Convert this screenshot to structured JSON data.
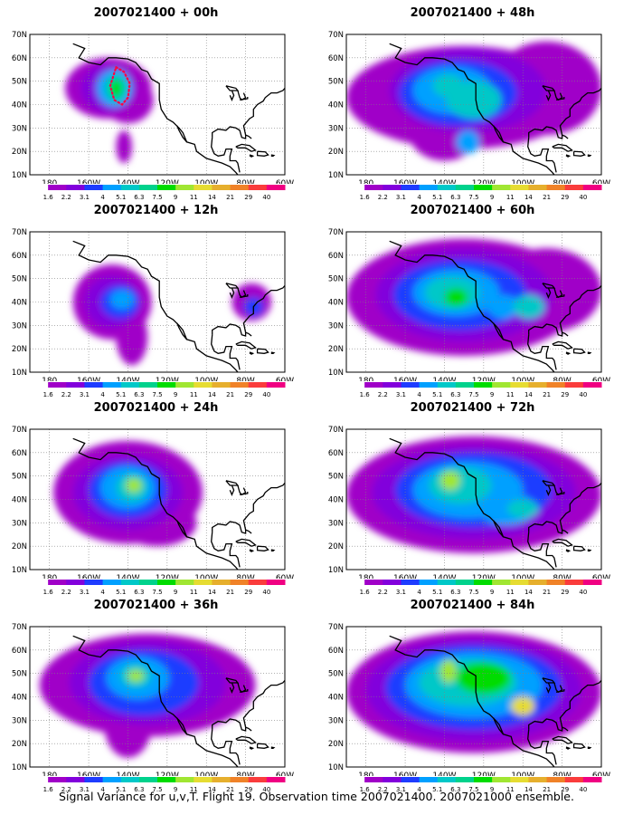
{
  "panels": [
    {
      "title": "2007021400 + 00h",
      "lead": "00h",
      "flight_track": true
    },
    {
      "title": "2007021400 + 48h",
      "lead": "48h",
      "flight_track": false
    },
    {
      "title": "2007021400 + 12h",
      "lead": "12h",
      "flight_track": false
    },
    {
      "title": "2007021400 + 60h",
      "lead": "60h",
      "flight_track": false
    },
    {
      "title": "2007021400 + 24h",
      "lead": "24h",
      "flight_track": false
    },
    {
      "title": "2007021400 + 72h",
      "lead": "72h",
      "flight_track": false
    },
    {
      "title": "2007021400 + 36h",
      "lead": "36h",
      "flight_track": false
    },
    {
      "title": "2007021400 + 84h",
      "lead": "84h",
      "flight_track": false
    }
  ],
  "axes": {
    "lat_labels": [
      "70N",
      "60N",
      "50N",
      "40N",
      "30N",
      "20N",
      "10N"
    ],
    "lon_labels": [
      "180",
      "160W",
      "140W",
      "120W",
      "100W",
      "80W",
      "60W"
    ],
    "lat_range": [
      10,
      70
    ],
    "lon_range": [
      -190,
      -60
    ]
  },
  "colorbar": {
    "levels": [
      "1.6",
      "2.2",
      "3.1",
      "4",
      "5.1",
      "6.3",
      "7.5",
      "9",
      "11",
      "14",
      "21",
      "29",
      "40"
    ],
    "colors": [
      "#a000c8",
      "#8200dc",
      "#1e3cff",
      "#00a0ff",
      "#00c8c8",
      "#00d28c",
      "#00dc00",
      "#a0e632",
      "#e6dc32",
      "#e6af2d",
      "#f08228",
      "#fa3c3c",
      "#f00082"
    ]
  },
  "caption": "Signal Variance for u,v,T. Flight 19. Observation time 2007021400. 2007021000 ensemble."
}
